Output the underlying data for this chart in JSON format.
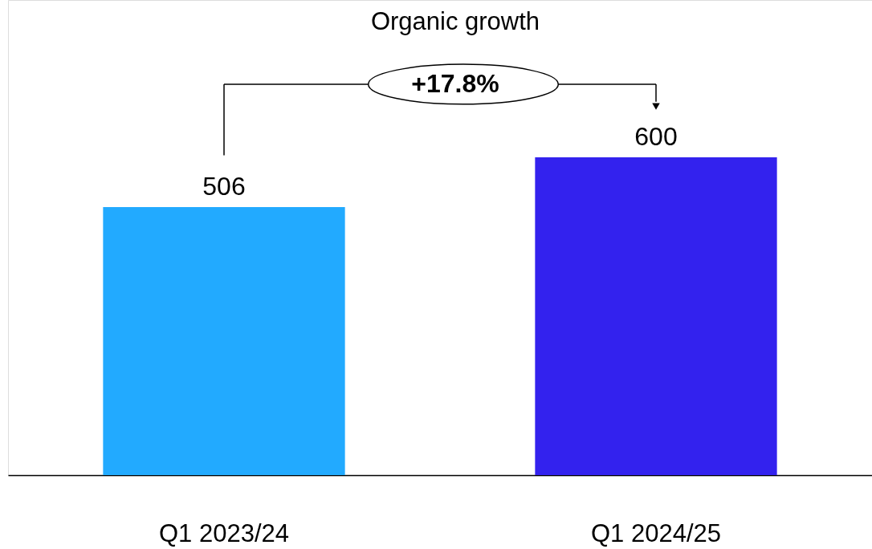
{
  "chart_data": {
    "type": "bar",
    "categories": [
      "Q1 2023/24",
      "Q1 2024/25"
    ],
    "values": [
      506,
      600
    ],
    "colors": [
      "#22aaff",
      "#3322ee"
    ],
    "data_labels": true,
    "annotations": [
      "Organic growth",
      "+17.8%"
    ]
  }
}
